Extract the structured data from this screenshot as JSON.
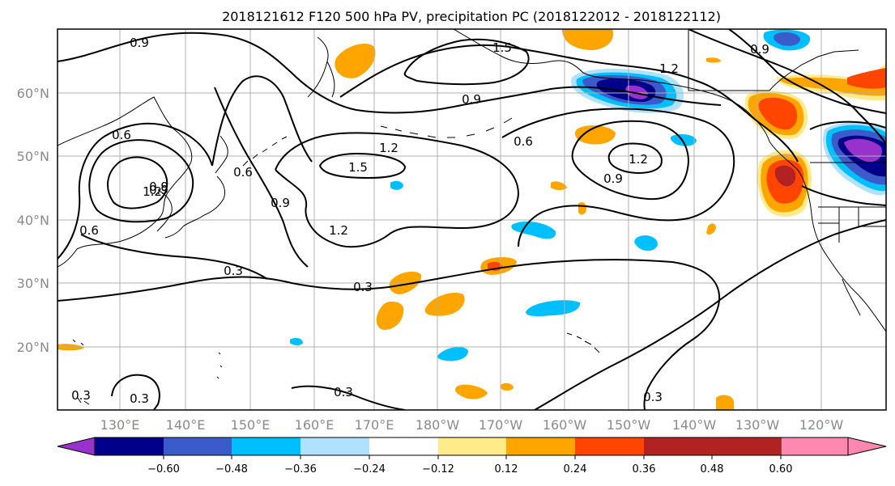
{
  "title": "2018121612 F120 500 hPa PV, precipitation PC (2018122012 - 2018122112)",
  "lat_labels": [
    "60°N",
    "50°N",
    "40°N",
    "30°N",
    "20°N"
  ],
  "lon_labels": [
    "130°E",
    "140°E",
    "150°E",
    "160°E",
    "170°E",
    "180°W",
    "170°W",
    "160°W",
    "150°W",
    "140°W",
    "130°W",
    "120°W"
  ],
  "colorbar": {
    "colors": [
      "#9932cc",
      "#00008b",
      "#3a5bc9",
      "#00bfff",
      "#b0e2ff",
      "#ffffff",
      "#ffeb8a",
      "#ffa500",
      "#ff4500",
      "#b22222",
      "#ff88b0"
    ],
    "tick_labels": [
      "−0.60",
      "−0.48",
      "−0.36",
      "−0.24",
      "−0.12",
      "0.12",
      "0.24",
      "0.36",
      "0.48",
      "0.60"
    ]
  },
  "pv_contour_labels": [
    "0.9",
    "1.5",
    "1.2",
    "0.9",
    "0.6",
    "1.2",
    "1.5",
    "1.2",
    "0.9",
    "0.6",
    "0.6",
    "0.9",
    "0.3",
    "0.3",
    "0.6",
    "0.9",
    "1.2",
    "0.9",
    "0.3",
    "0.3",
    "0.3",
    "0.9",
    "1.2",
    "0.3"
  ]
}
